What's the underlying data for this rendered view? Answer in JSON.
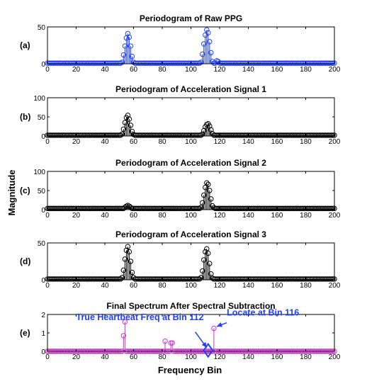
{
  "figure": {
    "ylabel": "Magnitude",
    "xlabel": "Frequency Bin"
  },
  "chart_data": [
    {
      "type": "stem",
      "label": "(a)",
      "title": "Periodogram of Raw PPG",
      "color": "#1f3fff",
      "xlim": [
        0,
        200
      ],
      "ylim": [
        0,
        50
      ],
      "xticks": [
        0,
        20,
        40,
        60,
        80,
        100,
        120,
        140,
        160,
        180,
        200
      ],
      "yticks": [
        0,
        50
      ],
      "baseline": 0.8,
      "peaks": [
        {
          "bin": 52,
          "value": 2
        },
        {
          "bin": 53,
          "value": 12
        },
        {
          "bin": 54,
          "value": 24
        },
        {
          "bin": 55,
          "value": 35
        },
        {
          "bin": 56,
          "value": 41
        },
        {
          "bin": 57,
          "value": 36
        },
        {
          "bin": 58,
          "value": 24
        },
        {
          "bin": 59,
          "value": 10
        },
        {
          "bin": 60,
          "value": 2
        },
        {
          "bin": 107,
          "value": 2
        },
        {
          "bin": 108,
          "value": 13
        },
        {
          "bin": 109,
          "value": 27
        },
        {
          "bin": 110,
          "value": 39
        },
        {
          "bin": 111,
          "value": 46
        },
        {
          "bin": 112,
          "value": 42
        },
        {
          "bin": 113,
          "value": 30
        },
        {
          "bin": 114,
          "value": 15
        },
        {
          "bin": 115,
          "value": 3
        },
        {
          "bin": 118,
          "value": 4
        },
        {
          "bin": 119,
          "value": 3
        }
      ]
    },
    {
      "type": "stem",
      "label": "(b)",
      "title": "Periodogram of Acceleration Signal 1",
      "color": "#000000",
      "xlim": [
        0,
        200
      ],
      "ylim": [
        0,
        100
      ],
      "xticks": [
        0,
        20,
        40,
        60,
        80,
        100,
        120,
        140,
        160,
        180,
        200
      ],
      "yticks": [
        0,
        50,
        100
      ],
      "baseline": 2,
      "peaks": [
        {
          "bin": 52,
          "value": 5
        },
        {
          "bin": 53,
          "value": 18
        },
        {
          "bin": 54,
          "value": 35
        },
        {
          "bin": 55,
          "value": 48
        },
        {
          "bin": 56,
          "value": 54
        },
        {
          "bin": 57,
          "value": 44
        },
        {
          "bin": 58,
          "value": 28
        },
        {
          "bin": 59,
          "value": 12
        },
        {
          "bin": 60,
          "value": 4
        },
        {
          "bin": 108,
          "value": 5
        },
        {
          "bin": 109,
          "value": 14
        },
        {
          "bin": 110,
          "value": 24
        },
        {
          "bin": 111,
          "value": 30
        },
        {
          "bin": 112,
          "value": 32
        },
        {
          "bin": 113,
          "value": 26
        },
        {
          "bin": 114,
          "value": 16
        },
        {
          "bin": 115,
          "value": 6
        }
      ]
    },
    {
      "type": "stem",
      "label": "(c)",
      "title": "Periodogram of Acceleration Signal 2",
      "color": "#000000",
      "xlim": [
        0,
        200
      ],
      "ylim": [
        0,
        100
      ],
      "xticks": [
        0,
        20,
        40,
        60,
        80,
        100,
        120,
        140,
        160,
        180,
        200
      ],
      "yticks": [
        0,
        50,
        100
      ],
      "baseline": 3,
      "peaks": [
        {
          "bin": 54,
          "value": 6
        },
        {
          "bin": 55,
          "value": 9
        },
        {
          "bin": 56,
          "value": 11
        },
        {
          "bin": 57,
          "value": 9
        },
        {
          "bin": 58,
          "value": 6
        },
        {
          "bin": 107,
          "value": 6
        },
        {
          "bin": 108,
          "value": 18
        },
        {
          "bin": 109,
          "value": 38
        },
        {
          "bin": 110,
          "value": 58
        },
        {
          "bin": 111,
          "value": 70
        },
        {
          "bin": 112,
          "value": 66
        },
        {
          "bin": 113,
          "value": 50
        },
        {
          "bin": 114,
          "value": 28
        },
        {
          "bin": 115,
          "value": 10
        },
        {
          "bin": 116,
          "value": 5
        }
      ]
    },
    {
      "type": "stem",
      "label": "(d)",
      "title": "Periodogram of Acceleration Signal 3",
      "color": "#000000",
      "xlim": [
        0,
        200
      ],
      "ylim": [
        0,
        50
      ],
      "xticks": [
        0,
        20,
        40,
        60,
        80,
        100,
        120,
        140,
        160,
        180,
        200
      ],
      "yticks": [
        0,
        50
      ],
      "baseline": 1,
      "peaks": [
        {
          "bin": 52,
          "value": 3
        },
        {
          "bin": 53,
          "value": 13
        },
        {
          "bin": 54,
          "value": 28
        },
        {
          "bin": 55,
          "value": 40
        },
        {
          "bin": 56,
          "value": 45
        },
        {
          "bin": 57,
          "value": 38
        },
        {
          "bin": 58,
          "value": 25
        },
        {
          "bin": 59,
          "value": 10
        },
        {
          "bin": 60,
          "value": 3
        },
        {
          "bin": 107,
          "value": 3
        },
        {
          "bin": 108,
          "value": 12
        },
        {
          "bin": 109,
          "value": 27
        },
        {
          "bin": 110,
          "value": 38
        },
        {
          "bin": 111,
          "value": 42
        },
        {
          "bin": 112,
          "value": 36
        },
        {
          "bin": 113,
          "value": 22
        },
        {
          "bin": 114,
          "value": 8
        },
        {
          "bin": 115,
          "value": 2
        }
      ]
    },
    {
      "type": "stem",
      "label": "(e)",
      "title": "Final Spectrum After Spectral Subtraction",
      "color": "#cc33cc",
      "xlim": [
        0,
        200
      ],
      "ylim": [
        0,
        2
      ],
      "xticks": [
        0,
        20,
        40,
        60,
        80,
        100,
        120,
        140,
        160,
        180,
        200
      ],
      "yticks": [
        0,
        1,
        2
      ],
      "baseline": 0,
      "peaks": [
        {
          "bin": 53,
          "value": 0.85
        },
        {
          "bin": 54,
          "value": 1.6
        },
        {
          "bin": 82,
          "value": 0.55
        },
        {
          "bin": 86,
          "value": 0.45
        },
        {
          "bin": 87,
          "value": 0.45
        },
        {
          "bin": 116,
          "value": 1.25
        }
      ],
      "marker": {
        "bin": 112,
        "value": 0.05,
        "shape": "diamond",
        "color": "#1f3fff"
      },
      "annotations": [
        {
          "text": "True Heartbeat Freq at Bin 112",
          "color": "#1f3fff",
          "text_bin": 20,
          "text_value": 1.7,
          "arrow_from_bin": 103,
          "arrow_from_value": 1.05,
          "arrow_to_bin": 111,
          "arrow_to_value": 0.2
        },
        {
          "text": "Locate at Bin 116",
          "color": "#1f3fff",
          "text_bin": 125,
          "text_value": 1.95,
          "arrow_from_bin": 125,
          "arrow_from_value": 1.55,
          "arrow_to_bin": 118,
          "arrow_to_value": 1.35
        }
      ]
    }
  ]
}
